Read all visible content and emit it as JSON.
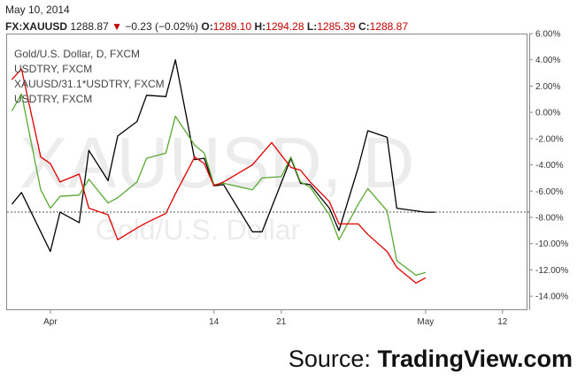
{
  "header": {
    "date": "May 10, 2014",
    "symbol": "FX:XAUUSD",
    "price": "1288.87",
    "arrow": "▼",
    "change": "−0.23 (−0.02%)",
    "o_label": "O:",
    "o_val": "1289.10",
    "h_label": "H:",
    "h_val": "1294.28",
    "l_label": "L:",
    "l_val": "1285.39",
    "c_label": "C:",
    "c_val": "1288.87"
  },
  "watermark": {
    "main": "XAUUSD, D",
    "sub": "Gold/U.S. Dollar"
  },
  "source": {
    "prefix": "Source: ",
    "brand": "TradingView.com"
  },
  "colors": {
    "black": "#000000",
    "green": "#5aa832",
    "red": "#e00000"
  },
  "chart_data": {
    "type": "line",
    "title": "Gold/U.S. Dollar, D, FXCM",
    "legend": [
      "USDTRY, FXCM",
      "XAUUSD/31.1*USDTRY, FXCM",
      "USDTRY, FXCM"
    ],
    "legend_placement": "top-left",
    "y_axis": {
      "side": "right",
      "min": -15,
      "max": 6,
      "ticks": [
        6,
        4,
        2,
        0,
        -2,
        -4,
        -6,
        -8,
        -10,
        -12,
        -14
      ],
      "tick_labels": [
        "6.00%",
        "4.00%",
        "2.00%",
        "0.00%",
        "-2.00%",
        "-4.00%",
        "-6.00%",
        "-8.00%",
        "-10.00%",
        "-12.00%",
        "-14.00%"
      ]
    },
    "x_axis": {
      "tick_labels": [
        "Apr",
        "14",
        "21",
        "May",
        "12"
      ],
      "tick_positions": [
        5,
        22,
        29,
        44,
        52
      ]
    },
    "x_range": [
      0.5,
      54.5
    ],
    "last_value_line": -7.6,
    "grid": false,
    "series": [
      {
        "color": "black",
        "values": [
          [
            1,
            -7.0
          ],
          [
            2,
            -6.1
          ],
          [
            4,
            -9.1
          ],
          [
            5,
            -10.6
          ],
          [
            6,
            -7.6
          ],
          [
            8,
            -8.4
          ],
          [
            9,
            -2.9
          ],
          [
            11,
            -5.2
          ],
          [
            12,
            -1.8
          ],
          [
            14,
            -0.7
          ],
          [
            15,
            1.3
          ],
          [
            17,
            1.2
          ],
          [
            18,
            4.0
          ],
          [
            20,
            -3.6
          ],
          [
            21,
            -3.5
          ],
          [
            22,
            -5.6
          ],
          [
            23,
            -5.5
          ],
          [
            26,
            -9.1
          ],
          [
            27,
            -9.1
          ],
          [
            30,
            -3.5
          ],
          [
            31,
            -5.4
          ],
          [
            32,
            -5.5
          ],
          [
            34,
            -7.3
          ],
          [
            35,
            -9.0
          ],
          [
            37,
            -4.2
          ],
          [
            38,
            -1.4
          ],
          [
            40,
            -1.9
          ],
          [
            41,
            -7.3
          ],
          [
            44,
            -7.6
          ],
          [
            45,
            -7.6
          ]
        ]
      },
      {
        "color": "green",
        "values": [
          [
            1,
            0.1
          ],
          [
            2,
            1.4
          ],
          [
            4,
            -5.9
          ],
          [
            5,
            -7.3
          ],
          [
            6,
            -6.4
          ],
          [
            8,
            -6.3
          ],
          [
            9,
            -5.1
          ],
          [
            11,
            -6.9
          ],
          [
            12,
            -6.5
          ],
          [
            14,
            -5.3
          ],
          [
            15,
            -3.5
          ],
          [
            17,
            -3.1
          ],
          [
            18,
            -0.3
          ],
          [
            20,
            -2.5
          ],
          [
            21,
            -3.1
          ],
          [
            22,
            -5.5
          ],
          [
            23,
            -5.4
          ],
          [
            26,
            -5.9
          ],
          [
            27,
            -5.0
          ],
          [
            29,
            -4.9
          ],
          [
            30,
            -3.4
          ],
          [
            31,
            -5.3
          ],
          [
            32,
            -5.7
          ],
          [
            34,
            -7.8
          ],
          [
            35,
            -9.7
          ],
          [
            37,
            -7.0
          ],
          [
            38,
            -5.8
          ],
          [
            40,
            -7.5
          ],
          [
            41,
            -11.3
          ],
          [
            43,
            -12.4
          ],
          [
            44,
            -12.2
          ]
        ]
      },
      {
        "color": "red",
        "values": [
          [
            1,
            2.5
          ],
          [
            2,
            3.3
          ],
          [
            4,
            -3.4
          ],
          [
            5,
            -3.9
          ],
          [
            6,
            -5.3
          ],
          [
            8,
            -4.7
          ],
          [
            9,
            -7.3
          ],
          [
            11,
            -7.8
          ],
          [
            12,
            -9.7
          ],
          [
            14,
            -8.8
          ],
          [
            15,
            -8.4
          ],
          [
            17,
            -7.7
          ],
          [
            18,
            -6.2
          ],
          [
            20,
            -3.4
          ],
          [
            21,
            -3.9
          ],
          [
            22,
            -5.6
          ],
          [
            23,
            -5.3
          ],
          [
            26,
            -4.0
          ],
          [
            28,
            -2.3
          ],
          [
            30,
            -4.2
          ],
          [
            31,
            -4.4
          ],
          [
            32,
            -5.3
          ],
          [
            34,
            -6.8
          ],
          [
            35,
            -8.5
          ],
          [
            37,
            -8.5
          ],
          [
            38,
            -9.3
          ],
          [
            40,
            -10.6
          ],
          [
            41,
            -11.8
          ],
          [
            43,
            -13.0
          ],
          [
            44,
            -12.6
          ]
        ]
      }
    ]
  }
}
